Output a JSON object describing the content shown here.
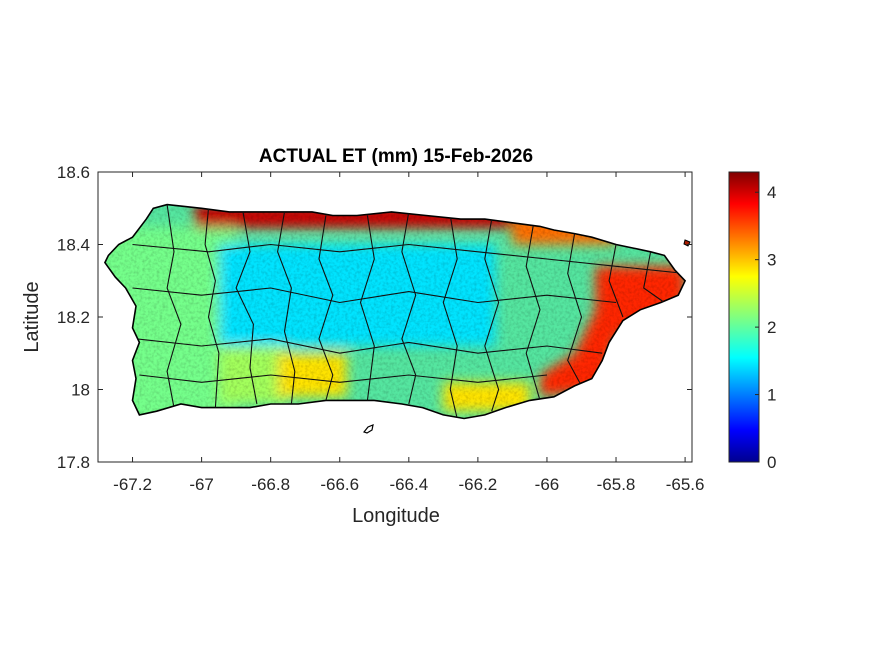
{
  "chart_data": {
    "type": "heatmap",
    "title": "ACTUAL ET (mm) 15-Feb-2026",
    "xlabel": "Longitude",
    "ylabel": "Latitude",
    "xlim": [
      -67.3,
      -65.58
    ],
    "ylim": [
      17.8,
      18.6
    ],
    "xticks": [
      -67.2,
      -67,
      -66.8,
      -66.6,
      -66.4,
      -66.2,
      -66,
      -65.8,
      -65.6
    ],
    "xtick_labels": [
      "-67.2",
      "-67",
      "-66.8",
      "-66.6",
      "-66.4",
      "-66.2",
      "-66",
      "-65.8",
      "-65.6"
    ],
    "yticks": [
      17.8,
      18.0,
      18.2,
      18.4,
      18.6
    ],
    "ytick_labels": [
      "17.8",
      "18",
      "18.2",
      "18.4",
      "18.6"
    ],
    "colorbar": {
      "colormap": "jet",
      "clim": [
        0,
        4.3
      ],
      "ticks": [
        0,
        1,
        2,
        3,
        4
      ],
      "tick_labels": [
        "0",
        "1",
        "2",
        "3",
        "4"
      ]
    },
    "grid": false,
    "region": "Puerto Rico municipalities",
    "value_zones": [
      {
        "area": "north coast",
        "level": 4.0
      },
      {
        "area": "northeast coast",
        "level": 3.3
      },
      {
        "area": "east and southeast coast",
        "level": 3.6
      },
      {
        "area": "south coast plains",
        "level": 2.8
      },
      {
        "area": "west",
        "level": 2.1
      },
      {
        "area": "central mountains",
        "level": 1.5
      },
      {
        "area": "southwest interior",
        "level": 2.3
      }
    ]
  }
}
